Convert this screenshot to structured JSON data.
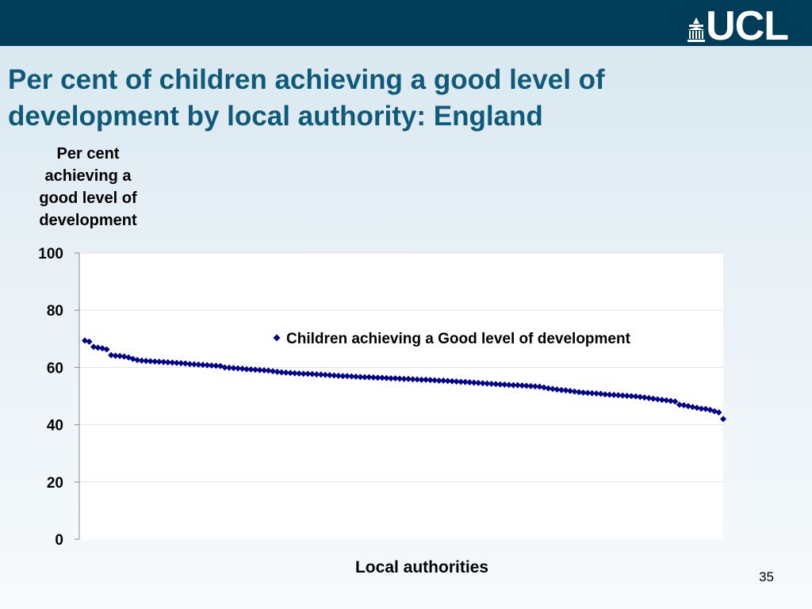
{
  "header": {
    "logo_text": "UCL",
    "band_color": "#003d58",
    "title_color": "#0f5a7a"
  },
  "slide": {
    "title": "Per cent of children achieving a good level of development by local authority: England",
    "page_number": "35"
  },
  "chart_data": {
    "type": "scatter",
    "title": "Per cent of children achieving a good level of development by local authority: England",
    "ylabel": "Per cent achieving a good level of development",
    "xlabel": "Local authorities",
    "ylim": [
      0,
      100
    ],
    "yticks": [
      "100",
      "80",
      "60",
      "40",
      "20",
      "0"
    ],
    "ytick_values": [
      100,
      80,
      60,
      40,
      20,
      0
    ],
    "grid": true,
    "legend_position": "top-right",
    "series": [
      {
        "name": "Children achieving a Good level of development",
        "color": "#00008b",
        "marker": "diamond",
        "values": [
          69.4,
          69.0,
          67.2,
          66.9,
          66.7,
          66.3,
          64.3,
          64.1,
          64.0,
          63.8,
          63.5,
          63.0,
          62.6,
          62.4,
          62.3,
          62.2,
          62.1,
          62.0,
          61.9,
          61.8,
          61.7,
          61.6,
          61.5,
          61.4,
          61.2,
          61.1,
          61.0,
          60.9,
          60.8,
          60.7,
          60.6,
          60.5,
          60.0,
          59.9,
          59.8,
          59.7,
          59.6,
          59.4,
          59.3,
          59.2,
          59.1,
          59.0,
          58.9,
          58.7,
          58.5,
          58.3,
          58.2,
          58.1,
          58.0,
          57.9,
          57.8,
          57.8,
          57.7,
          57.6,
          57.5,
          57.4,
          57.3,
          57.2,
          57.1,
          57.0,
          57.0,
          56.9,
          56.8,
          56.7,
          56.6,
          56.6,
          56.5,
          56.4,
          56.4,
          56.3,
          56.2,
          56.2,
          56.1,
          56.0,
          56.0,
          55.9,
          55.8,
          55.7,
          55.7,
          55.6,
          55.5,
          55.4,
          55.4,
          55.3,
          55.2,
          55.1,
          55.0,
          54.9,
          54.8,
          54.7,
          54.6,
          54.5,
          54.4,
          54.3,
          54.2,
          54.1,
          54.0,
          53.9,
          53.8,
          53.8,
          53.7,
          53.6,
          53.5,
          53.4,
          53.3,
          53.0,
          52.7,
          52.5,
          52.3,
          52.1,
          52.0,
          51.8,
          51.6,
          51.4,
          51.2,
          51.1,
          51.0,
          50.9,
          50.8,
          50.6,
          50.5,
          50.4,
          50.3,
          50.2,
          50.1,
          50.0,
          49.9,
          49.7,
          49.5,
          49.3,
          49.1,
          48.9,
          48.7,
          48.5,
          48.3,
          48.1,
          47.0,
          46.8,
          46.5,
          46.2,
          45.9,
          45.6,
          45.5,
          45.2,
          44.7,
          44.3,
          42.0
        ]
      }
    ]
  }
}
